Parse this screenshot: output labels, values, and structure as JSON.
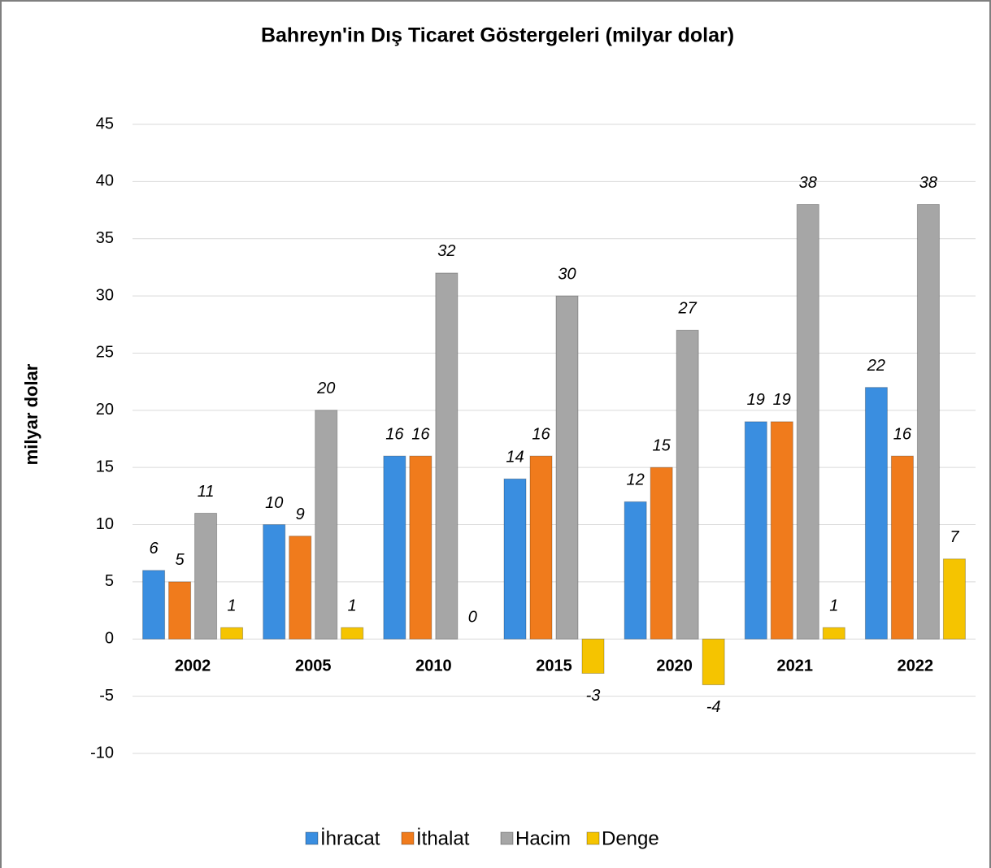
{
  "chart_data": {
    "type": "bar",
    "title": "Bahreyn'in Dış Ticaret Göstergeleri  (milyar dolar)",
    "y_axis_label": "milyar dolar",
    "categories": [
      "2002",
      "2005",
      "2010",
      "2015",
      "2020",
      "2021",
      "2022"
    ],
    "series": [
      {
        "name": "İhracat",
        "color": "#3a8ee0",
        "values": [
          6,
          10,
          16,
          14,
          12,
          19,
          22
        ]
      },
      {
        "name": "İthalat",
        "color": "#f07b1c",
        "values": [
          5,
          9,
          16,
          16,
          15,
          19,
          16
        ]
      },
      {
        "name": "Hacim",
        "color": "#a6a6a6",
        "values": [
          11,
          20,
          32,
          30,
          27,
          38,
          38
        ]
      },
      {
        "name": "Denge",
        "color": "#f5c400",
        "values": [
          1,
          1,
          0,
          -3,
          -4,
          1,
          7
        ]
      }
    ],
    "ylim": [
      -10,
      45
    ],
    "yticks": [
      -10,
      -5,
      0,
      5,
      10,
      15,
      20,
      25,
      30,
      35,
      40,
      45
    ],
    "grid": true,
    "legend": "bottom"
  }
}
